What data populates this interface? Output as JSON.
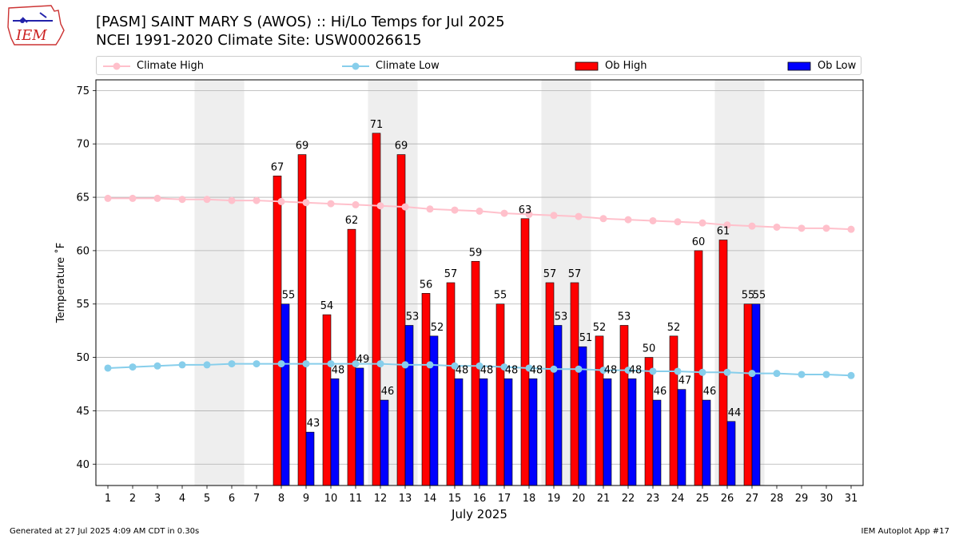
{
  "logo": {
    "text": "IEM"
  },
  "header": {
    "title_line1": "[PASM] SAINT MARY S (AWOS) :: Hi/Lo Temps for Jul 2025",
    "title_line2": "NCEI 1991-2020 Climate Site: USW00026615"
  },
  "legend": {
    "climate_high": "Climate High",
    "climate_low": "Climate Low",
    "ob_high": "Ob High",
    "ob_low": "Ob Low"
  },
  "colors": {
    "climate_high": "#ffc0cb",
    "climate_low": "#87ceeb",
    "ob_high": "#ff0000",
    "ob_low": "#0000ff",
    "weekend_shade": "#eeeeee",
    "grid": "#b0b0b0"
  },
  "chart_data": {
    "type": "bar",
    "xlabel": "July 2025",
    "ylabel": "Temperature ˚F",
    "ylim": [
      38,
      76
    ],
    "yticks": [
      40,
      45,
      50,
      55,
      60,
      65,
      70,
      75
    ],
    "grid": "horizontal",
    "days": [
      1,
      2,
      3,
      4,
      5,
      6,
      7,
      8,
      9,
      10,
      11,
      12,
      13,
      14,
      15,
      16,
      17,
      18,
      19,
      20,
      21,
      22,
      23,
      24,
      25,
      26,
      27,
      28,
      29,
      30,
      31
    ],
    "weekend_pairs": [
      [
        5,
        6
      ],
      [
        12,
        13
      ],
      [
        19,
        20
      ],
      [
        26,
        27
      ]
    ],
    "series": [
      {
        "name": "Climate High",
        "kind": "line",
        "values": [
          64.9,
          64.9,
          64.9,
          64.8,
          64.8,
          64.7,
          64.7,
          64.6,
          64.5,
          64.4,
          64.3,
          64.2,
          64.1,
          63.9,
          63.8,
          63.7,
          63.5,
          63.4,
          63.3,
          63.2,
          63.0,
          62.9,
          62.8,
          62.7,
          62.6,
          62.4,
          62.3,
          62.2,
          62.1,
          62.1,
          62.0
        ]
      },
      {
        "name": "Climate Low",
        "kind": "line",
        "values": [
          49.0,
          49.1,
          49.2,
          49.3,
          49.3,
          49.4,
          49.4,
          49.4,
          49.4,
          49.4,
          49.4,
          49.4,
          49.3,
          49.3,
          49.2,
          49.2,
          49.1,
          49.0,
          48.9,
          48.9,
          48.8,
          48.8,
          48.7,
          48.7,
          48.6,
          48.6,
          48.5,
          48.5,
          48.4,
          48.4,
          48.3
        ]
      },
      {
        "name": "Ob High",
        "kind": "bar",
        "values": [
          null,
          null,
          null,
          null,
          null,
          null,
          null,
          67,
          69,
          54,
          62,
          71,
          69,
          56,
          57,
          59,
          55,
          63,
          57,
          57,
          52,
          53,
          50,
          52,
          60,
          61,
          55,
          null,
          null,
          null,
          null
        ]
      },
      {
        "name": "Ob Low",
        "kind": "bar",
        "values": [
          null,
          null,
          null,
          null,
          null,
          null,
          null,
          55,
          43,
          48,
          49,
          46,
          53,
          52,
          48,
          48,
          48,
          48,
          53,
          51,
          48,
          48,
          46,
          47,
          46,
          44,
          55,
          null,
          null,
          null,
          null
        ]
      }
    ]
  },
  "footer": {
    "left": "Generated at 27 Jul 2025 4:09 AM CDT in 0.30s",
    "right": "IEM Autoplot App #17"
  }
}
